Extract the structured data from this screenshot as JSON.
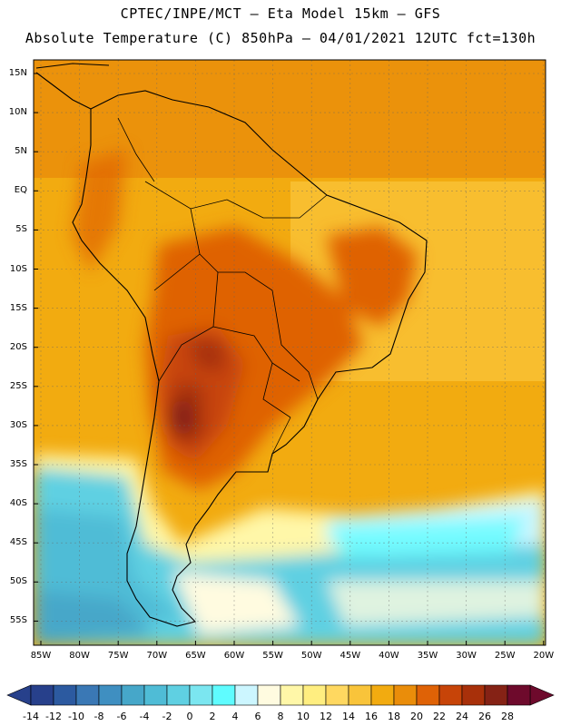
{
  "header": {
    "line1": "CPTEC/INPE/MCT –  Eta Model 15km – GFS",
    "line2": "Absolute Temperature (C) 850hPa – 04/01/2021 12UTC fct=130h"
  },
  "map": {
    "region": "South America",
    "lat_labels": [
      "15N",
      "10N",
      "5N",
      "EQ",
      "5S",
      "10S",
      "15S",
      "20S",
      "25S",
      "30S",
      "35S",
      "40S",
      "45S",
      "50S",
      "55S"
    ],
    "lon_labels": [
      "85W",
      "80W",
      "75W",
      "70W",
      "65W",
      "60W",
      "55W",
      "50W",
      "45W",
      "40W",
      "35W",
      "30W",
      "25W",
      "20W"
    ]
  },
  "colorbar": {
    "labels": [
      "-14",
      "-12",
      "-10",
      "-8",
      "-6",
      "-4",
      "-2",
      "0",
      "2",
      "4",
      "6",
      "8",
      "10",
      "12",
      "14",
      "16",
      "18",
      "20",
      "22",
      "24",
      "26",
      "28"
    ],
    "colors": [
      "#27408b",
      "#2c5aa0",
      "#3a78b5",
      "#3f8fc1",
      "#46a7c9",
      "#4fbcd6",
      "#5fd0e2",
      "#7be6f0",
      "#5ffcff",
      "#ccf6ff",
      "#fffbe0",
      "#fff7a8",
      "#ffee80",
      "#ffd860",
      "#f9c43a",
      "#f2ab10",
      "#ea8d0a",
      "#df6206",
      "#c74408",
      "#a8300a",
      "#852215",
      "#6e0a2c"
    ],
    "under_color": "#27408b",
    "over_color": "#6e0a2c"
  }
}
